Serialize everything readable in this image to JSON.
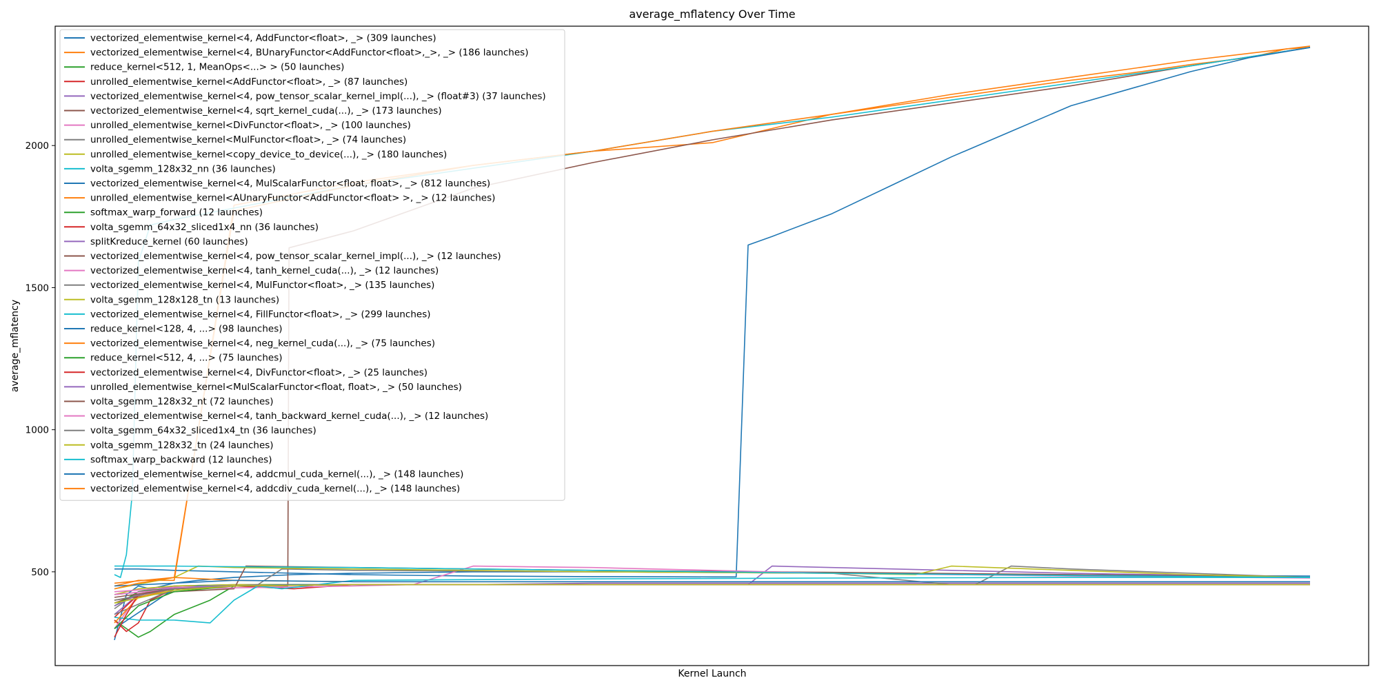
{
  "chart_data": {
    "type": "line",
    "title": "average_mflatency Over Time",
    "xlabel": "Kernel Launch",
    "ylabel": "average_mflatency",
    "xlim": [
      0,
      100
    ],
    "ylim": [
      170,
      2420
    ],
    "yticks": [
      500,
      1000,
      1500,
      2000
    ],
    "xticks_shown": false,
    "grid": false,
    "legend_position": "upper left",
    "series": [
      {
        "name": "vectorized_elementwise_kernel<4, AddFunctor<float>, _> (309 launches)",
        "color": "#1f77b4",
        "x": [
          0,
          1,
          2,
          3,
          5,
          7,
          10,
          15,
          20,
          30,
          40,
          50,
          60,
          70,
          80,
          90,
          100
        ],
        "y": [
          260,
          420,
          450,
          440,
          460,
          470,
          480,
          490,
          495,
          500,
          500,
          498,
          495,
          492,
          490,
          487,
          485
        ]
      },
      {
        "name": "vectorized_elementwise_kernel<4, BUnaryFunctor<AddFunctor<float>,_>, _> (186 launches)",
        "color": "#ff7f0e",
        "x": [
          0,
          2,
          5,
          10,
          15,
          20,
          30,
          40,
          50,
          55,
          60,
          65,
          70,
          75,
          80,
          85,
          90,
          95,
          98,
          100
        ],
        "y": [
          450,
          470,
          470,
          1790,
          1830,
          1870,
          1930,
          1980,
          2010,
          2060,
          2110,
          2140,
          2170,
          2200,
          2230,
          2255,
          2285,
          2310,
          2340,
          2345
        ]
      },
      {
        "name": "reduce_kernel<512, 1, MeanOps<...> > (50 launches)",
        "color": "#2ca02c",
        "x": [
          0,
          1,
          2,
          3,
          5,
          8,
          10,
          12,
          20,
          40,
          60,
          80,
          100
        ],
        "y": [
          330,
          300,
          270,
          290,
          350,
          400,
          450,
          455,
          455,
          455,
          455,
          455,
          455
        ]
      },
      {
        "name": "unrolled_elementwise_kernel<AddFunctor<float>, _> (87 launches)",
        "color": "#d62728",
        "x": [
          0,
          1,
          2,
          3,
          5,
          8,
          10,
          15,
          20,
          40,
          60,
          80,
          100
        ],
        "y": [
          330,
          290,
          320,
          400,
          440,
          450,
          450,
          440,
          455,
          455,
          455,
          455,
          455
        ]
      },
      {
        "name": "vectorized_elementwise_kernel<4, pow_tensor_scalar_kernel_impl(...), _> (float#3) (37 launches)",
        "color": "#9467bd",
        "x": [
          0,
          2,
          5,
          10,
          20,
          30,
          40,
          50,
          60,
          70,
          80,
          90,
          100
        ],
        "y": [
          350,
          420,
          440,
          450,
          455,
          455,
          460,
          460,
          460,
          460,
          460,
          460,
          460
        ]
      },
      {
        "name": "vectorized_elementwise_kernel<4, sqrt_kernel_cuda(...), _> (173 launches)",
        "color": "#8c564b",
        "x": [
          0,
          2,
          5,
          10,
          14.5,
          14.6,
          20,
          30,
          40,
          50,
          60,
          70,
          80,
          90,
          100
        ],
        "y": [
          390,
          420,
          440,
          450,
          450,
          1640,
          1700,
          1850,
          1940,
          2020,
          2090,
          2150,
          2210,
          2280,
          2345
        ]
      },
      {
        "name": "unrolled_elementwise_kernel<DivFunctor<float>, _> (100 launches)",
        "color": "#e377c2",
        "x": [
          0,
          2,
          5,
          10,
          20,
          30,
          40,
          50,
          60,
          70,
          80,
          90,
          100
        ],
        "y": [
          300,
          420,
          450,
          450,
          455,
          455,
          455,
          455,
          455,
          455,
          455,
          455,
          455
        ]
      },
      {
        "name": "unrolled_elementwise_kernel<MulFunctor<float>, _> (74 launches)",
        "color": "#7f7f7f",
        "x": [
          0,
          2,
          5,
          10,
          20,
          40,
          60,
          80,
          100
        ],
        "y": [
          370,
          430,
          450,
          455,
          455,
          455,
          455,
          455,
          455
        ]
      },
      {
        "name": "unrolled_elementwise_kernel<copy_device_to_device(...), _> (180 launches)",
        "color": "#bcbd22",
        "x": [
          0,
          2,
          5,
          10,
          20,
          40,
          60,
          80,
          100
        ],
        "y": [
          420,
          440,
          450,
          455,
          455,
          455,
          455,
          455,
          455
        ]
      },
      {
        "name": "volta_sgemm_128x32_nn (36 launches)",
        "color": "#17becf",
        "x": [
          0,
          0.5,
          1,
          1.5,
          2,
          3,
          5,
          10,
          20,
          30,
          40,
          50,
          60,
          70,
          80,
          90,
          100
        ],
        "y": [
          490,
          480,
          560,
          780,
          1590,
          1720,
          1740,
          1780,
          1860,
          1920,
          1980,
          2050,
          2100,
          2160,
          2220,
          2280,
          2345
        ]
      },
      {
        "name": "vectorized_elementwise_kernel<4, MulScalarFunctor<float, float>, _> (812 launches)",
        "color": "#1f77b4",
        "x": [
          0,
          2,
          5,
          10,
          20,
          30,
          40,
          50,
          52,
          53,
          55,
          60,
          65,
          70,
          75,
          80,
          85,
          90,
          95,
          100
        ],
        "y": [
          510,
          510,
          505,
          500,
          490,
          485,
          483,
          482,
          482,
          1650,
          1680,
          1760,
          1860,
          1960,
          2050,
          2140,
          2200,
          2260,
          2310,
          2345
        ]
      },
      {
        "name": "unrolled_elementwise_kernel<AUnaryFunctor<AddFunctor<float> >, _> (12 launches)",
        "color": "#ff7f0e",
        "x": [
          0,
          5,
          10,
          20,
          40,
          60,
          80,
          100
        ],
        "y": [
          460,
          480,
          470,
          465,
          465,
          465,
          465,
          465
        ]
      },
      {
        "name": "softmax_warp_forward (12 launches)",
        "color": "#2ca02c",
        "x": [
          0,
          2,
          5,
          10,
          20,
          40,
          60,
          80,
          100
        ],
        "y": [
          380,
          430,
          445,
          450,
          455,
          455,
          455,
          455,
          455
        ]
      },
      {
        "name": "volta_sgemm_64x32_sliced1x4_nn (36 launches)",
        "color": "#d62728",
        "x": [
          0,
          2,
          5,
          10,
          20,
          40,
          60,
          80,
          100
        ],
        "y": [
          340,
          420,
          440,
          450,
          455,
          455,
          455,
          455,
          455
        ]
      },
      {
        "name": "splitKreduce_kernel (60 launches)",
        "color": "#9467bd",
        "x": [
          0,
          5,
          10,
          20,
          30,
          40,
          50,
          53,
          55,
          60,
          70,
          80,
          90,
          100
        ],
        "y": [
          420,
          440,
          450,
          455,
          455,
          455,
          455,
          455,
          520,
          515,
          505,
          495,
          488,
          480
        ]
      },
      {
        "name": "vectorized_elementwise_kernel<4, pow_tensor_scalar_kernel_impl(...), _> (12 launches)",
        "color": "#8c564b",
        "x": [
          0,
          5,
          10,
          11,
          20,
          40,
          60,
          80,
          100
        ],
        "y": [
          400,
          430,
          440,
          520,
          515,
          505,
          498,
          490,
          480
        ]
      },
      {
        "name": "vectorized_elementwise_kernel<4, tanh_kernel_cuda(...), _> (12 launches)",
        "color": "#e377c2",
        "x": [
          0,
          5,
          20,
          25,
          30,
          40,
          50,
          60,
          80,
          100
        ],
        "y": [
          420,
          440,
          450,
          455,
          520,
          515,
          505,
          495,
          485,
          478
        ]
      },
      {
        "name": "vectorized_elementwise_kernel<4, MulFunctor<float>, _> (135 launches)",
        "color": "#7f7f7f",
        "x": [
          0,
          5,
          10,
          12,
          14,
          20,
          40,
          60,
          70,
          72,
          75,
          80,
          90,
          100
        ],
        "y": [
          350,
          440,
          450,
          455,
          510,
          505,
          500,
          495,
          455,
          455,
          520,
          510,
          495,
          480
        ]
      },
      {
        "name": "volta_sgemm_128x128_tn (13 launches)",
        "color": "#bcbd22",
        "x": [
          0,
          5,
          7,
          10,
          20,
          40,
          60,
          67,
          70,
          80,
          90,
          100
        ],
        "y": [
          440,
          480,
          520,
          515,
          510,
          500,
          495,
          490,
          520,
          505,
          490,
          480
        ]
      },
      {
        "name": "vectorized_elementwise_kernel<4, FillFunctor<float>, _> (299 launches)",
        "color": "#17becf",
        "x": [
          0,
          2,
          5,
          8,
          10,
          12,
          14,
          20,
          40,
          60,
          80,
          100
        ],
        "y": [
          340,
          330,
          330,
          320,
          400,
          450,
          440,
          470,
          475,
          478,
          480,
          480
        ]
      },
      {
        "name": "reduce_kernel<128, 4, ...> (98 launches)",
        "color": "#1f77b4",
        "x": [
          0,
          5,
          7,
          10,
          15,
          20,
          40,
          60,
          80,
          100
        ],
        "y": [
          300,
          440,
          450,
          450,
          455,
          455,
          455,
          455,
          455,
          455
        ]
      },
      {
        "name": "vectorized_elementwise_kernel<4, neg_kernel_cuda(...), _> (75 launches)",
        "color": "#ff7f0e",
        "x": [
          0,
          2,
          5,
          10,
          20,
          40,
          60,
          80,
          100
        ],
        "y": [
          320,
          410,
          440,
          450,
          455,
          455,
          455,
          455,
          455
        ]
      },
      {
        "name": "reduce_kernel<512, 4, ...> (75 launches)",
        "color": "#2ca02c",
        "x": [
          0,
          2,
          5,
          10,
          20,
          40,
          60,
          80,
          100
        ],
        "y": [
          300,
          380,
          430,
          450,
          455,
          455,
          455,
          455,
          455
        ]
      },
      {
        "name": "vectorized_elementwise_kernel<4, DivFunctor<float>, _> (25 launches)",
        "color": "#d62728",
        "x": [
          0,
          1,
          2,
          5,
          10,
          20,
          40,
          60,
          80,
          100
        ],
        "y": [
          270,
          350,
          420,
          440,
          450,
          455,
          455,
          455,
          455,
          455
        ]
      },
      {
        "name": "unrolled_elementwise_kernel<MulScalarFunctor<float, float>, _> (50 launches)",
        "color": "#9467bd",
        "x": [
          0,
          2,
          5,
          10,
          20,
          40,
          60,
          80,
          100
        ],
        "y": [
          380,
          420,
          445,
          450,
          455,
          455,
          455,
          455,
          455
        ]
      },
      {
        "name": "volta_sgemm_128x32_nt (72 launches)",
        "color": "#8c564b",
        "x": [
          0,
          5,
          10,
          20,
          40,
          60,
          80,
          100
        ],
        "y": [
          410,
          440,
          450,
          455,
          455,
          455,
          455,
          455
        ]
      },
      {
        "name": "vectorized_elementwise_kernel<4, tanh_backward_kernel_cuda(...), _> (12 launches)",
        "color": "#e377c2",
        "x": [
          0,
          5,
          10,
          20,
          40,
          60,
          80,
          100
        ],
        "y": [
          430,
          445,
          450,
          455,
          455,
          455,
          455,
          455
        ]
      },
      {
        "name": "volta_sgemm_64x32_sliced1x4_tn (36 launches)",
        "color": "#7f7f7f",
        "x": [
          0,
          5,
          10,
          20,
          40,
          60,
          80,
          100
        ],
        "y": [
          400,
          440,
          450,
          455,
          455,
          455,
          455,
          455
        ]
      },
      {
        "name": "volta_sgemm_128x32_tn (24 launches)",
        "color": "#bcbd22",
        "x": [
          0,
          5,
          10,
          20,
          40,
          60,
          80,
          100
        ],
        "y": [
          390,
          435,
          450,
          455,
          455,
          455,
          455,
          455
        ]
      },
      {
        "name": "softmax_warp_backward (12 launches)",
        "color": "#17becf",
        "x": [
          0,
          5,
          10,
          20,
          40,
          60,
          80,
          100
        ],
        "y": [
          520,
          520,
          518,
          515,
          505,
          495,
          487,
          480
        ]
      },
      {
        "name": "vectorized_elementwise_kernel<4, addcmul_cuda_kernel(...), _> (148 launches)",
        "color": "#1f77b4",
        "x": [
          0,
          5,
          10,
          20,
          40,
          60,
          80,
          100
        ],
        "y": [
          450,
          460,
          470,
          465,
          465,
          465,
          465,
          465
        ]
      },
      {
        "name": "vectorized_elementwise_kernel<4, addcdiv_cuda_kernel(...), _> (148 launches)",
        "color": "#ff7f0e",
        "x": [
          0,
          2,
          5,
          10,
          20,
          30,
          40,
          50,
          60,
          70,
          80,
          90,
          100
        ],
        "y": [
          440,
          460,
          480,
          1770,
          1860,
          1930,
          1980,
          2050,
          2110,
          2180,
          2240,
          2300,
          2350
        ]
      }
    ]
  }
}
